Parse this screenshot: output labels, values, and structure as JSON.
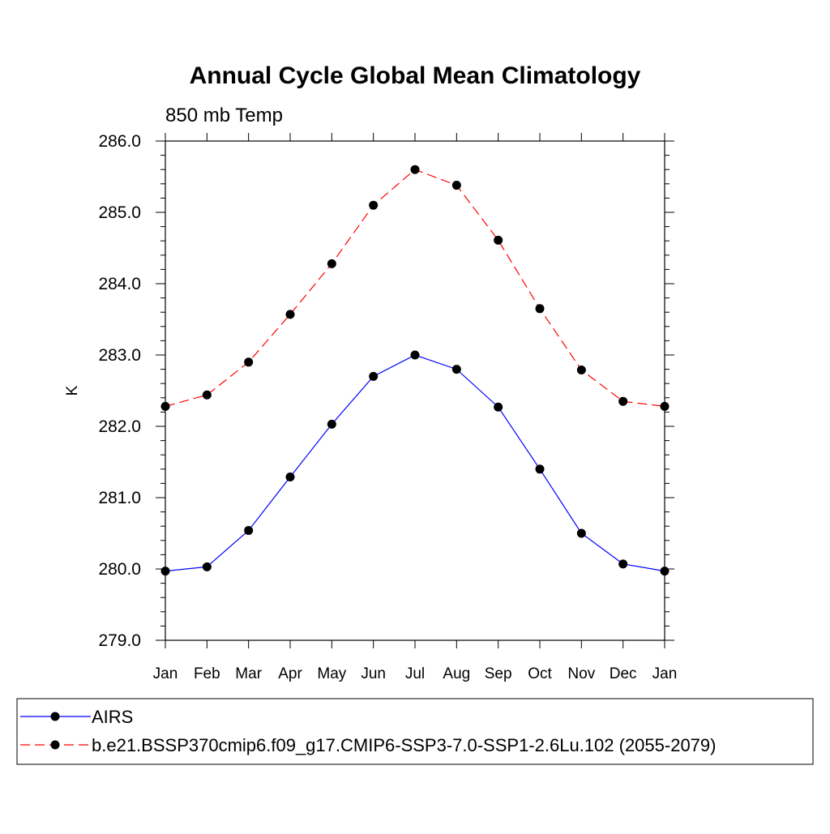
{
  "chart_data": {
    "type": "line",
    "title": "Annual Cycle Global Mean Climatology",
    "subtitle": "850 mb Temp",
    "xlabel": "",
    "ylabel": "K",
    "categories": [
      "Jan",
      "Feb",
      "Mar",
      "Apr",
      "May",
      "Jun",
      "Jul",
      "Aug",
      "Sep",
      "Oct",
      "Nov",
      "Dec",
      "Jan"
    ],
    "ylim": [
      279.0,
      286.0
    ],
    "yticks": [
      "279.0",
      "280.0",
      "281.0",
      "282.0",
      "283.0",
      "284.0",
      "285.0",
      "286.0"
    ],
    "grid": false,
    "legend_position": "bottom",
    "series": [
      {
        "name": "AIRS",
        "color": "#0000ff",
        "dash": "solid",
        "marker": "filled-circle",
        "values": [
          279.97,
          280.03,
          280.54,
          281.29,
          282.03,
          282.7,
          283.0,
          282.8,
          282.27,
          281.4,
          280.5,
          280.07,
          279.97
        ]
      },
      {
        "name": "b.e21.BSSP370cmip6.f09_g17.CMIP6-SSP3-7.0-SSP1-2.6Lu.102 (2055-2079)",
        "color": "#ff0000",
        "dash": "dashed",
        "marker": "filled-circle",
        "values": [
          282.28,
          282.44,
          282.9,
          283.57,
          284.28,
          285.1,
          285.6,
          285.38,
          284.61,
          283.65,
          282.79,
          282.35,
          282.28
        ]
      }
    ]
  }
}
